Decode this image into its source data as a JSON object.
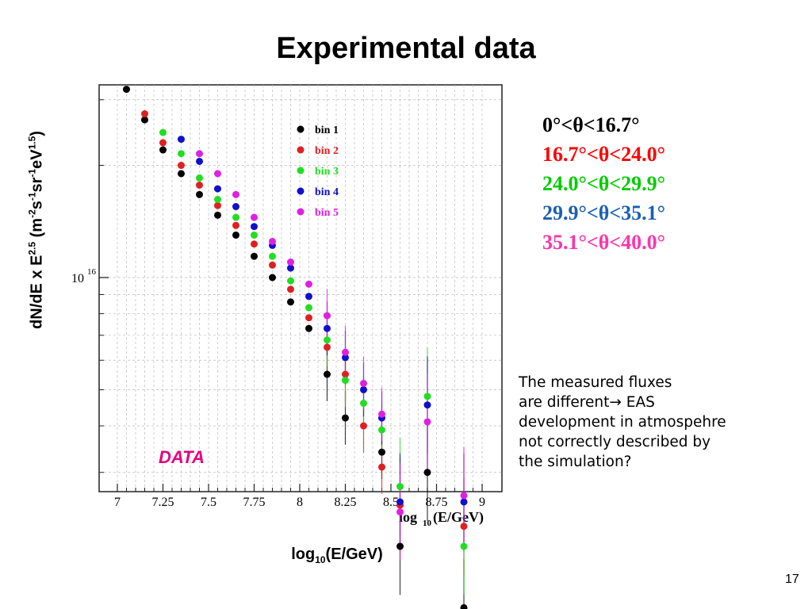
{
  "slide": {
    "title": "Experimental data",
    "page_number": "17",
    "x_axis_caption_main": "log",
    "x_axis_caption_sub": "10",
    "x_axis_caption_rest": "(E/GeV)",
    "y_axis_caption_parts": [
      "dN/dE x E",
      "2.5",
      " (m",
      "-2",
      "s",
      "-1",
      "sr",
      "-1",
      "eV",
      "1.5",
      ")"
    ],
    "data_tag": "DATA",
    "angle_legend": [
      {
        "text": "0°<θ<16.7°",
        "color": "#000000"
      },
      {
        "text": "16.7°<θ<24.0°",
        "color": "#ff0000"
      },
      {
        "text": "24.0°<θ<29.9°",
        "color": "#00cc00"
      },
      {
        "text": "29.9°<θ<35.1°",
        "color": "#1a5fb4"
      },
      {
        "text": "35.1°<θ<40.0°",
        "color": "#ff33aa"
      }
    ],
    "note_lines": [
      "The measured fluxes",
      "are different→ EAS",
      "development in atmospehre",
      "not correctly described by",
      "the simulation?"
    ]
  },
  "chart_data": {
    "type": "scatter",
    "xlabel": "log10(E/GeV)",
    "xlim": [
      6.9,
      9.1
    ],
    "x_ticks": [
      "7",
      "7.25",
      "7.5",
      "7.75",
      "8",
      "8.25",
      "8.5",
      "8.75",
      "9"
    ],
    "x_tick_values": [
      7,
      7.25,
      7.5,
      7.75,
      8,
      8.25,
      8.5,
      8.75,
      9
    ],
    "y_scale": "log",
    "y_tick_label_base": "10",
    "y_tick_label_exp": "16",
    "y_tick_value": 1e+16,
    "grid": true,
    "legend_position": "top-right",
    "series": [
      {
        "name": "bin 1",
        "color": "#000000",
        "x": [
          7.05,
          7.15,
          7.25,
          7.35,
          7.45,
          7.55,
          7.65,
          7.75,
          7.85,
          7.95,
          8.05,
          8.15,
          8.25,
          8.45,
          8.55,
          8.7,
          8.9
        ],
        "y": [
          3.2e+16,
          2.65e+16,
          2.2e+16,
          1.9e+16,
          1.67e+16,
          1.47e+16,
          1.3e+16,
          1.14e+16,
          1e+16,
          8600000000000000.0,
          7300000000000000.0,
          5500000000000000.0,
          4200000000000000.0,
          3400000000000000.0,
          1900000000000000.0,
          3000000000000000.0,
          1300000000000000.0
        ]
      },
      {
        "name": "bin 2",
        "color": "#e02020",
        "x": [
          7.15,
          7.25,
          7.35,
          7.45,
          7.55,
          7.65,
          7.75,
          7.85,
          7.95,
          8.05,
          8.15,
          8.25,
          8.35,
          8.45,
          8.55,
          8.9
        ],
        "y": [
          2.75e+16,
          2.3e+16,
          2e+16,
          1.77e+16,
          1.56e+16,
          1.38e+16,
          1.23e+16,
          1.08e+16,
          9300000000000000.0,
          7800000000000000.0,
          6500000000000000.0,
          5500000000000000.0,
          4000000000000000.0,
          3100000000000000.0,
          2450000000000000.0,
          2150000000000000.0
        ]
      },
      {
        "name": "bin 3",
        "color": "#22dd22",
        "x": [
          7.25,
          7.35,
          7.45,
          7.55,
          7.65,
          7.75,
          7.85,
          7.95,
          8.05,
          8.15,
          8.25,
          8.35,
          8.45,
          8.55,
          8.7,
          8.9
        ],
        "y": [
          2.45e+16,
          2.15e+16,
          1.85e+16,
          1.62e+16,
          1.45e+16,
          1.3e+16,
          1.14e+16,
          9800000000000000.0,
          8300000000000000.0,
          6800000000000000.0,
          5300000000000000.0,
          4600000000000000.0,
          3900000000000000.0,
          2750000000000000.0,
          4800000000000000.0,
          1900000000000000.0
        ]
      },
      {
        "name": "bin 4",
        "color": "#1010cc",
        "x": [
          7.35,
          7.45,
          7.55,
          7.65,
          7.75,
          7.85,
          7.95,
          8.05,
          8.15,
          8.25,
          8.35,
          8.45,
          8.55,
          8.7,
          8.9
        ],
        "y": [
          2.35e+16,
          2.05e+16,
          1.73e+16,
          1.55e+16,
          1.37e+16,
          1.22e+16,
          1.06e+16,
          8900000000000000.0,
          7300000000000000.0,
          6100000000000000.0,
          5000000000000000.0,
          4200000000000000.0,
          2500000000000000.0,
          4550000000000000.0,
          2500000000000000.0
        ]
      },
      {
        "name": "bin 5",
        "color": "#e020e0",
        "x": [
          7.45,
          7.55,
          7.65,
          7.75,
          7.85,
          7.95,
          8.05,
          8.15,
          8.25,
          8.35,
          8.45,
          8.55,
          8.7,
          8.9
        ],
        "y": [
          2.15e+16,
          1.9e+16,
          1.67e+16,
          1.45e+16,
          1.25e+16,
          1.1e+16,
          9600000000000000.0,
          7900000000000000.0,
          6300000000000000.0,
          5200000000000000.0,
          4300000000000000.0,
          2350000000000000.0,
          4100000000000000.0,
          2600000000000000.0
        ]
      }
    ]
  }
}
